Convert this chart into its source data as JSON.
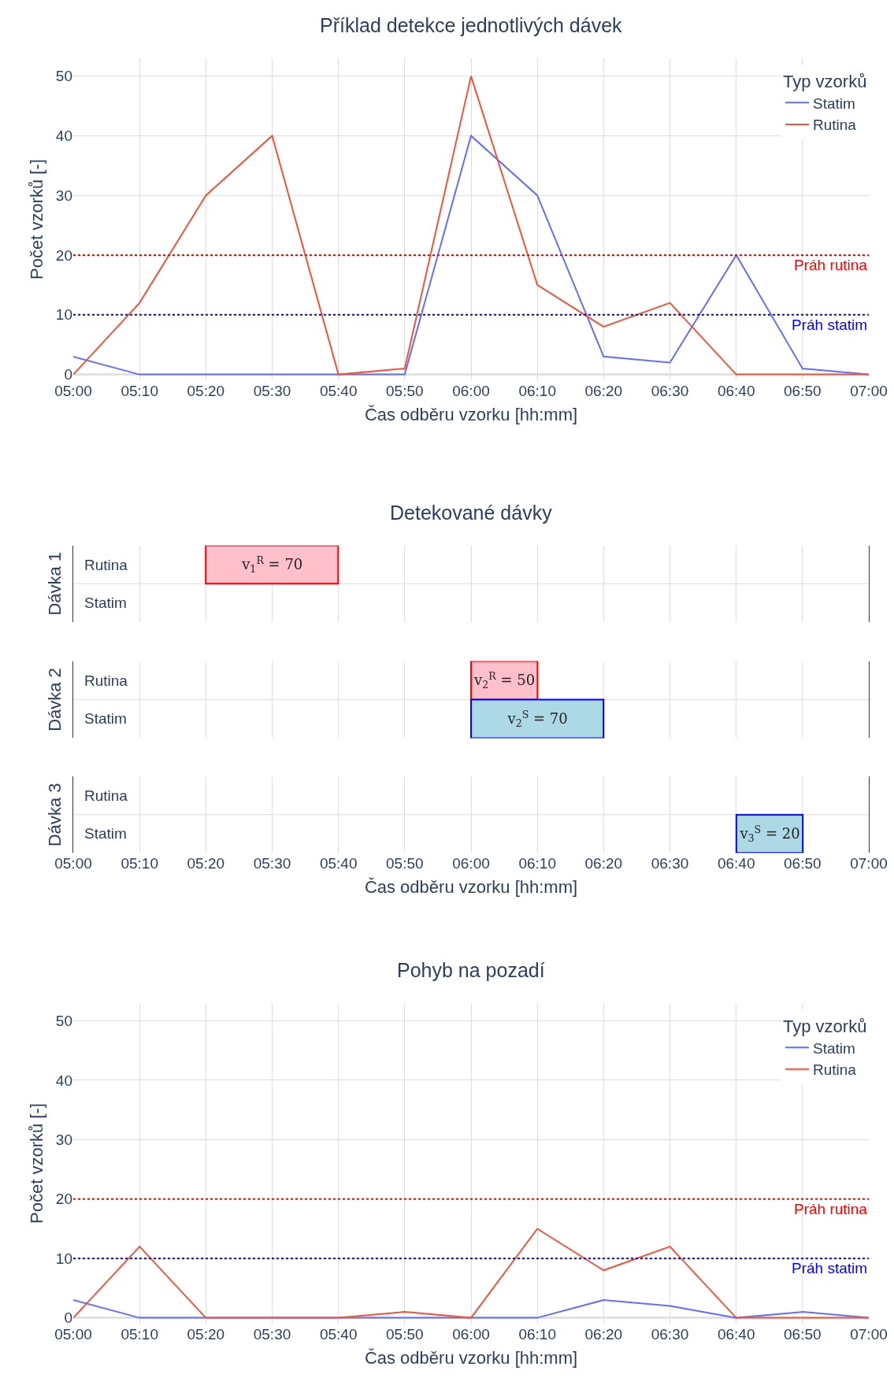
{
  "chart_data": [
    {
      "type": "line",
      "title": "Příklad detekce jednotlivých dávek",
      "xlabel": "Čas odběru vzorku [hh:mm]",
      "ylabel": "Počet vzorků [-]",
      "legend_title": "Typ vzorků",
      "legend": "top right",
      "grid": true,
      "x": [
        5,
        5.1667,
        5.3333,
        5.5,
        5.6667,
        5.8333,
        6,
        6.1667,
        6.3333,
        6.5,
        6.6667,
        6.8333,
        7
      ],
      "series": [
        {
          "name": "Statim",
          "color": "#636efa",
          "values": [
            3,
            0,
            0,
            0,
            0,
            0,
            40,
            30,
            3,
            2,
            20,
            1,
            0
          ]
        },
        {
          "name": "Rutina",
          "color": "#ef553b",
          "values": [
            0,
            12,
            30,
            40,
            0,
            1,
            50,
            15,
            8,
            12,
            0,
            0,
            0
          ]
        }
      ],
      "xlim": [
        5,
        7
      ],
      "ylim": [
        -1,
        53
      ],
      "yticks": [
        0,
        10,
        20,
        30,
        40,
        50
      ],
      "xticks": [
        {
          "value": 5,
          "label": "05:00"
        },
        {
          "value": 5.1667,
          "label": "05:10"
        },
        {
          "value": 5.3333,
          "label": "05:20"
        },
        {
          "value": 5.5,
          "label": "05:30"
        },
        {
          "value": 5.6667,
          "label": "05:40"
        },
        {
          "value": 5.8333,
          "label": "05:50"
        },
        {
          "value": 6,
          "label": "06:00"
        },
        {
          "value": 6.1667,
          "label": "06:10"
        },
        {
          "value": 6.3333,
          "label": "06:20"
        },
        {
          "value": 6.5,
          "label": "06:30"
        },
        {
          "value": 6.6667,
          "label": "06:40"
        },
        {
          "value": 6.8333,
          "label": "06:50"
        },
        {
          "value": 7,
          "label": "07:00"
        }
      ],
      "ref_lines": [
        {
          "axis": "y",
          "value": 20,
          "label": "Práh rutina",
          "color": "#ff0000",
          "line_style": "dotted"
        },
        {
          "axis": "y",
          "value": 10,
          "label": "Práh statim",
          "color": "#0000ff",
          "line_style": "dotted"
        }
      ]
    },
    {
      "type": "bar",
      "orientation": "horizontal",
      "title": "Detekované dávky",
      "ylabel": "Dávka 1",
      "categories": [
        "Rutina",
        "Statim"
      ],
      "values": [
        0.333,
        null
      ],
      "base": [
        5.333,
        null
      ],
      "colors": [
        "#ffc0cb",
        "#add8e6"
      ],
      "value_labels": [
        "v$_{1}$$^{R}$ = 70",
        null
      ],
      "grid": "x",
      "tick_labels": "y",
      "xlim": [
        5,
        7
      ],
      "xticks": [
        {
          "value": 5,
          "label": null
        },
        {
          "value": 5.1667,
          "label": null
        },
        {
          "value": 5.3333,
          "label": null
        },
        {
          "value": 5.5,
          "label": null
        },
        {
          "value": 5.6667,
          "label": null
        },
        {
          "value": 5.8333,
          "label": null
        },
        {
          "value": 6,
          "label": null
        },
        {
          "value": 6.1667,
          "label": null
        },
        {
          "value": 6.3333,
          "label": null
        },
        {
          "value": 6.5,
          "label": null
        },
        {
          "value": 6.6667,
          "label": null
        },
        {
          "value": 6.8333,
          "label": null
        },
        {
          "value": 7,
          "label": null
        }
      ]
    },
    {
      "type": "bar",
      "orientation": "horizontal",
      "ylabel": "Dávka 2",
      "categories": [
        "Rutina",
        "Statim"
      ],
      "values": [
        0.167,
        0.333
      ],
      "base": [
        6,
        6
      ],
      "colors": [
        "#ffc0cb",
        "#add8e6"
      ],
      "value_labels": [
        "v$_{2}$$^{R}$ = 50",
        "v$_{2}$$^{S}$ = 70"
      ],
      "grid": "x",
      "tick_labels": "y",
      "xlim": [
        5,
        7
      ],
      "xticks": [
        {
          "value": 5,
          "label": null
        },
        {
          "value": 5.1667,
          "label": null
        },
        {
          "value": 5.3333,
          "label": null
        },
        {
          "value": 5.5,
          "label": null
        },
        {
          "value": 5.6667,
          "label": null
        },
        {
          "value": 5.8333,
          "label": null
        },
        {
          "value": 6,
          "label": null
        },
        {
          "value": 6.1667,
          "label": null
        },
        {
          "value": 6.3333,
          "label": null
        },
        {
          "value": 6.5,
          "label": null
        },
        {
          "value": 6.6667,
          "label": null
        },
        {
          "value": 6.8333,
          "label": null
        },
        {
          "value": 7,
          "label": null
        }
      ]
    },
    {
      "type": "bar",
      "orientation": "horizontal",
      "ylabel": "Dávka 3",
      "xlabel": "Čas odběru vzorku [hh:mm]",
      "categories": [
        "Rutina",
        "Statim"
      ],
      "values": [
        null,
        0.167
      ],
      "base": [
        null,
        6.667
      ],
      "colors": [
        "#ffc0cb",
        "#add8e6"
      ],
      "value_labels": [
        null,
        "v$_{3}$$^{S}$ = 20"
      ],
      "grid": "x",
      "xlim": [
        5,
        7
      ],
      "xticks": [
        {
          "value": 5,
          "label": "05:00"
        },
        {
          "value": 5.1667,
          "label": "05:10"
        },
        {
          "value": 5.3333,
          "label": "05:20"
        },
        {
          "value": 5.5,
          "label": "05:30"
        },
        {
          "value": 5.6667,
          "label": "05:40"
        },
        {
          "value": 5.8333,
          "label": "05:50"
        },
        {
          "value": 6,
          "label": "06:00"
        },
        {
          "value": 6.1667,
          "label": "06:10"
        },
        {
          "value": 6.3333,
          "label": "06:20"
        },
        {
          "value": 6.5,
          "label": "06:30"
        },
        {
          "value": 6.6667,
          "label": "06:40"
        },
        {
          "value": 6.8333,
          "label": "06:50"
        },
        {
          "value": 7,
          "label": "07:00"
        }
      ]
    },
    {
      "type": "line",
      "title": "Pohyb na pozadí",
      "xlabel": "Čas odběru vzorku [hh:mm]",
      "ylabel": "Počet vzorků [-]",
      "legend_title": "Typ vzorků",
      "legend": "top right",
      "grid": true,
      "x": [
        5,
        5.1667,
        5.3333,
        5.5,
        5.6667,
        5.8333,
        6,
        6.1667,
        6.3333,
        6.5,
        6.6667,
        6.8333,
        7
      ],
      "series": [
        {
          "name": "Statim",
          "color": "#636efa",
          "values": [
            3,
            0,
            0,
            0,
            0,
            0,
            0,
            0,
            3,
            2,
            0,
            1,
            0
          ]
        },
        {
          "name": "Rutina",
          "color": "#ef553b",
          "values": [
            0,
            12,
            0,
            0,
            0,
            1,
            0,
            15,
            8,
            12,
            0,
            0,
            0
          ]
        }
      ],
      "xlim": [
        5,
        7
      ],
      "ylim": [
        -1,
        53
      ],
      "yticks": [
        0,
        10,
        20,
        30,
        40,
        50
      ],
      "xticks": [
        {
          "value": 5,
          "label": "05:00"
        },
        {
          "value": 5.1667,
          "label": "05:10"
        },
        {
          "value": 5.3333,
          "label": "05:20"
        },
        {
          "value": 5.5,
          "label": "05:30"
        },
        {
          "value": 5.6667,
          "label": "05:40"
        },
        {
          "value": 5.8333,
          "label": "05:50"
        },
        {
          "value": 6,
          "label": "06:00"
        },
        {
          "value": 6.1667,
          "label": "06:10"
        },
        {
          "value": 6.3333,
          "label": "06:20"
        },
        {
          "value": 6.5,
          "label": "06:30"
        },
        {
          "value": 6.6667,
          "label": "06:40"
        },
        {
          "value": 6.8333,
          "label": "06:50"
        },
        {
          "value": 7,
          "label": "07:00"
        }
      ],
      "ref_lines": [
        {
          "axis": "y",
          "value": 20,
          "label": "Práh rutina",
          "color": "#ff0000",
          "line_style": "dotted"
        },
        {
          "axis": "y",
          "value": 10,
          "label": "Práh statim",
          "color": "#0000ff",
          "line_style": "dotted"
        }
      ]
    }
  ]
}
